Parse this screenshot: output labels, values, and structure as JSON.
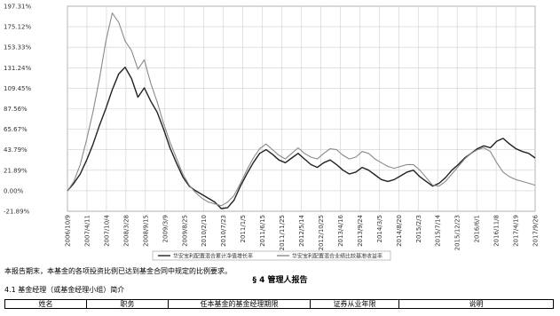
{
  "chart_data": {
    "type": "line",
    "y_ticks": [
      "197.31%",
      "175.12%",
      "153.33%",
      "131.24%",
      "109.45%",
      "87.56%",
      "65.67%",
      "43.79%",
      "21.89%",
      "0.00%",
      "-21.89%"
    ],
    "x_ticks": [
      "2006/10/9",
      "2007/4/11",
      "2007/10/4",
      "2008/3/28",
      "2008/9/15",
      "2009/3/9",
      "2009/8/25",
      "2010/2/10",
      "2010/7/23",
      "2011/1/5",
      "2011/6/15",
      "2011/11/25",
      "2012/5/14",
      "2012/10/25",
      "2013/4/16",
      "2013/9/24",
      "2014/3/5",
      "2014/8/20",
      "2015/2/3",
      "2015/7/14",
      "2015/12/23",
      "2016/6/1",
      "2016/11/8",
      "2017/4/19",
      "2017/9/26"
    ],
    "ylim": [
      -21.89,
      197.31
    ],
    "grid": true,
    "legend_position": "bottom",
    "colors": {
      "fund": "#222222",
      "benchmark": "#8a8a8a"
    },
    "series": [
      {
        "key": "fund",
        "name": "华安宝利配置混合累计净值增长率",
        "values": [
          0,
          8,
          18,
          33,
          50,
          70,
          88,
          108,
          125,
          132,
          120,
          100,
          110,
          96,
          84,
          66,
          46,
          30,
          15,
          5,
          0,
          -4,
          -8,
          -12,
          -19,
          -18,
          -10,
          5,
          18,
          30,
          40,
          44,
          39,
          33,
          30,
          35,
          40,
          34,
          28,
          25,
          30,
          33,
          28,
          22,
          18,
          20,
          25,
          22,
          17,
          12,
          10,
          12,
          16,
          20,
          22,
          15,
          10,
          5,
          8,
          14,
          22,
          28,
          35,
          40,
          45,
          48,
          46,
          53,
          56,
          50,
          45,
          42,
          40,
          35
        ]
      },
      {
        "key": "benchmark",
        "name": "华安宝利配置混合业绩比较基准收益率",
        "values": [
          0,
          10,
          28,
          55,
          85,
          120,
          160,
          190,
          180,
          160,
          150,
          130,
          140,
          115,
          95,
          72,
          52,
          35,
          18,
          6,
          -2,
          -8,
          -12,
          -14,
          -16,
          -12,
          -5,
          8,
          22,
          35,
          45,
          50,
          44,
          38,
          34,
          40,
          46,
          40,
          36,
          34,
          40,
          45,
          44,
          38,
          34,
          36,
          42,
          40,
          34,
          30,
          26,
          24,
          26,
          28,
          28,
          22,
          14,
          6,
          5,
          10,
          18,
          26,
          34,
          40,
          44,
          46,
          42,
          30,
          20,
          15,
          12,
          10,
          8,
          6
        ]
      }
    ]
  },
  "text": {
    "para": "本报告期末，本基金的各项投资比例已达到基金合同中规定的比例要求。",
    "section_title": "§ 4  管理人报告",
    "subsection_title": "4.1  基金经理（或基金经理小组）简介"
  },
  "table": {
    "headers": [
      "姓名",
      "职务",
      "任本基金的基金经理期限",
      "证券从业年限",
      "说明"
    ]
  }
}
